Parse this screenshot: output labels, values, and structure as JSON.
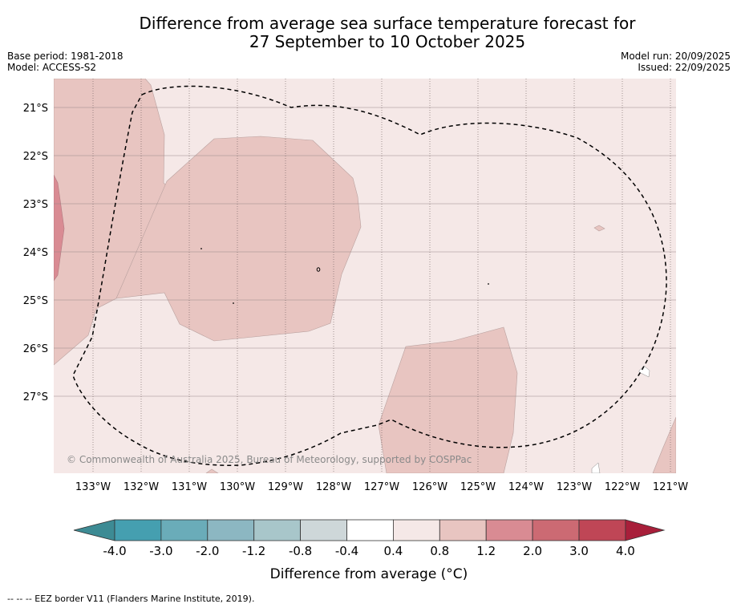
{
  "title": {
    "line1": "Difference from average sea surface temperature forecast for",
    "line2": "27 September to 10 October 2025"
  },
  "meta": {
    "base_period": "Base period: 1981-2018",
    "model": "Model: ACCESS-S2",
    "model_run": "Model run: 20/09/2025",
    "issued": "Issued: 22/09/2025"
  },
  "map": {
    "lat_labels": [
      "21°S",
      "22°S",
      "23°S",
      "24°S",
      "25°S",
      "26°S",
      "27°S"
    ],
    "lon_labels": [
      "133°W",
      "132°W",
      "131°W",
      "130°W",
      "129°W",
      "128°W",
      "127°W",
      "126°W",
      "125°W",
      "124°W",
      "123°W",
      "122°W",
      "121°W"
    ],
    "copyright": "© Commonwealth of Australia 2025, Bureau of Meteorology, supported by COSPPac",
    "colors": {
      "background_anomaly": "#f5e8e7",
      "anomaly_0_8_1_2": "#e8c5c1",
      "anomaly_1_2_2_0": "#d98b93",
      "no_anomaly": "#ffffff"
    }
  },
  "colorbar": {
    "labels": [
      "-4.0",
      "-3.0",
      "-2.0",
      "-1.2",
      "-0.8",
      "-0.4",
      "0.4",
      "0.8",
      "1.2",
      "2.0",
      "3.0",
      "4.0"
    ],
    "colors": [
      "#3d8b94",
      "#459fb0",
      "#6aacb9",
      "#8cb7c2",
      "#a8c6ca",
      "#ced7d9",
      "#ffffff",
      "#f5e8e7",
      "#e8c5c1",
      "#d98b93",
      "#cc6a73",
      "#bf4656",
      "#a81f3a"
    ],
    "title": "Difference from average (°C)"
  },
  "footnote": "--  --  -- EEZ border V11 (Flanders Marine Institute, 2019)."
}
